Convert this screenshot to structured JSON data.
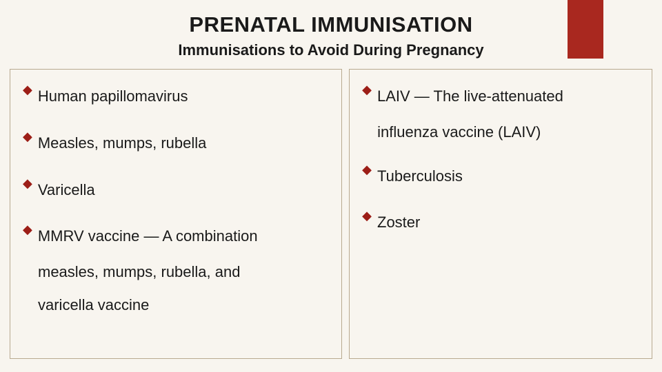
{
  "colors": {
    "background": "#f8f5ef",
    "accent_block": "#a9281f",
    "bullet": "#9c1e17",
    "border": "#b8a98f",
    "text": "#1a1a1a"
  },
  "typography": {
    "title_fontsize": 31,
    "subtitle_fontsize": 22,
    "body_fontsize": 22,
    "font_family": "Arial"
  },
  "heading": {
    "title": "PRENATAL IMMUNISATION",
    "subtitle": "Immunisations to Avoid During Pregnancy"
  },
  "left": {
    "items": [
      {
        "text": "Human papillomavirus"
      },
      {
        "text": "Measles, mumps, rubella"
      },
      {
        "text": "Varicella"
      },
      {
        "text": "MMRV vaccine — A combination",
        "cont": [
          "measles, mumps, rubella, and",
          "varicella vaccine"
        ]
      }
    ]
  },
  "right": {
    "items": [
      {
        "text": "LAIV — The live-attenuated",
        "cont": [
          "influenza vaccine (LAIV)"
        ]
      },
      {
        "text": "Tuberculosis"
      },
      {
        "text": "Zoster"
      }
    ]
  },
  "bullet_glyph": "◆"
}
